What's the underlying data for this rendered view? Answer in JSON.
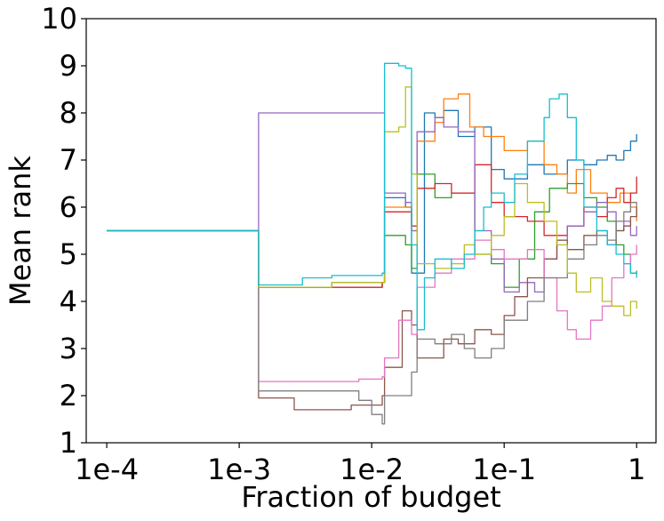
{
  "chart_data": {
    "type": "line",
    "title": "",
    "xlabel": "Fraction of budget",
    "ylabel": "Mean rank",
    "xscale": "log",
    "xlim": [
      7e-05,
      1.4
    ],
    "ylim": [
      1,
      10
    ],
    "xticks": [
      {
        "value": 0.0001,
        "label": "1e-4"
      },
      {
        "value": 0.001,
        "label": "1e-3"
      },
      {
        "value": 0.01,
        "label": "1e-2"
      },
      {
        "value": 0.1,
        "label": "1e-1"
      },
      {
        "value": 1,
        "label": "1"
      }
    ],
    "yticks": [
      1,
      2,
      3,
      4,
      5,
      6,
      7,
      8,
      9,
      10
    ],
    "grid": false,
    "legend": "none",
    "series": [
      {
        "color": "#1f77b4",
        "points": [
          [
            0.0001,
            5.5
          ],
          [
            0.00135,
            5.5
          ],
          [
            0.0014,
            4.3
          ],
          [
            0.005,
            4.4
          ],
          [
            0.012,
            4.4
          ],
          [
            0.0125,
            6.2
          ],
          [
            0.018,
            6.0
          ],
          [
            0.02,
            4.6
          ],
          [
            0.025,
            8.0
          ],
          [
            0.03,
            7.9
          ],
          [
            0.035,
            8.05
          ],
          [
            0.045,
            7.5
          ],
          [
            0.06,
            7.7
          ],
          [
            0.08,
            6.8
          ],
          [
            0.1,
            6.6
          ],
          [
            0.15,
            6.9
          ],
          [
            0.2,
            6.7
          ],
          [
            0.3,
            7.0
          ],
          [
            0.4,
            6.9
          ],
          [
            0.5,
            7.0
          ],
          [
            0.6,
            7.1
          ],
          [
            0.7,
            7.0
          ],
          [
            0.8,
            7.2
          ],
          [
            0.9,
            7.4
          ],
          [
            1.0,
            7.55
          ]
        ]
      },
      {
        "color": "#ff7f0e",
        "points": [
          [
            0.0001,
            5.5
          ],
          [
            0.00135,
            5.5
          ],
          [
            0.0014,
            4.3
          ],
          [
            0.012,
            4.4
          ],
          [
            0.0125,
            6.0
          ],
          [
            0.02,
            5.5
          ],
          [
            0.022,
            7.4
          ],
          [
            0.03,
            7.8
          ],
          [
            0.035,
            8.3
          ],
          [
            0.045,
            8.4
          ],
          [
            0.055,
            7.7
          ],
          [
            0.07,
            7.5
          ],
          [
            0.1,
            7.2
          ],
          [
            0.15,
            7.4
          ],
          [
            0.2,
            6.9
          ],
          [
            0.25,
            6.7
          ],
          [
            0.3,
            6.3
          ],
          [
            0.35,
            6.8
          ],
          [
            0.45,
            6.3
          ],
          [
            0.6,
            6.1
          ],
          [
            0.75,
            6.3
          ],
          [
            0.9,
            6.0
          ],
          [
            1.0,
            5.7
          ]
        ]
      },
      {
        "color": "#2ca02c",
        "points": [
          [
            0.0001,
            5.5
          ],
          [
            0.00135,
            5.5
          ],
          [
            0.0014,
            4.3
          ],
          [
            0.012,
            4.4
          ],
          [
            0.0125,
            5.4
          ],
          [
            0.018,
            5.2
          ],
          [
            0.02,
            4.7
          ],
          [
            0.022,
            6.7
          ],
          [
            0.03,
            6.2
          ],
          [
            0.04,
            6.3
          ],
          [
            0.06,
            5.0
          ],
          [
            0.08,
            4.8
          ],
          [
            0.1,
            4.3
          ],
          [
            0.13,
            4.9
          ],
          [
            0.17,
            5.9
          ],
          [
            0.22,
            6.4
          ],
          [
            0.3,
            6.5
          ],
          [
            0.4,
            6.2
          ],
          [
            0.5,
            6.0
          ],
          [
            0.6,
            5.7
          ],
          [
            0.7,
            5.2
          ],
          [
            0.8,
            5.0
          ],
          [
            0.9,
            4.6
          ],
          [
            1.0,
            4.65
          ]
        ]
      },
      {
        "color": "#d62728",
        "points": [
          [
            0.0001,
            5.5
          ],
          [
            0.00135,
            5.5
          ],
          [
            0.0014,
            4.3
          ],
          [
            0.012,
            4.4
          ],
          [
            0.0125,
            5.9
          ],
          [
            0.02,
            5.6
          ],
          [
            0.022,
            6.4
          ],
          [
            0.03,
            6.5
          ],
          [
            0.04,
            6.3
          ],
          [
            0.06,
            6.9
          ],
          [
            0.08,
            6.1
          ],
          [
            0.1,
            5.8
          ],
          [
            0.15,
            5.7
          ],
          [
            0.2,
            5.4
          ],
          [
            0.3,
            5.6
          ],
          [
            0.4,
            6.0
          ],
          [
            0.5,
            5.8
          ],
          [
            0.6,
            6.2
          ],
          [
            0.7,
            6.4
          ],
          [
            0.8,
            6.1
          ],
          [
            0.9,
            6.3
          ],
          [
            1.0,
            6.65
          ]
        ]
      },
      {
        "color": "#9467bd",
        "points": [
          [
            0.0001,
            5.5
          ],
          [
            0.00135,
            5.5
          ],
          [
            0.0014,
            8.0
          ],
          [
            0.012,
            8.0
          ],
          [
            0.0125,
            6.3
          ],
          [
            0.018,
            6.1
          ],
          [
            0.02,
            5.5
          ],
          [
            0.022,
            7.6
          ],
          [
            0.03,
            7.9
          ],
          [
            0.035,
            7.7
          ],
          [
            0.045,
            7.6
          ],
          [
            0.06,
            5.5
          ],
          [
            0.08,
            4.9
          ],
          [
            0.1,
            4.2
          ],
          [
            0.13,
            4.4
          ],
          [
            0.17,
            4.2
          ],
          [
            0.2,
            4.9
          ],
          [
            0.25,
            5.3
          ],
          [
            0.3,
            5.6
          ],
          [
            0.4,
            5.9
          ],
          [
            0.5,
            6.1
          ],
          [
            0.6,
            5.9
          ],
          [
            0.7,
            5.5
          ],
          [
            0.8,
            5.7
          ],
          [
            0.9,
            5.4
          ],
          [
            1.0,
            5.6
          ]
        ]
      },
      {
        "color": "#8c564b",
        "points": [
          [
            0.0001,
            5.5
          ],
          [
            0.00135,
            5.5
          ],
          [
            0.0014,
            1.95
          ],
          [
            0.0025,
            1.95
          ],
          [
            0.0026,
            1.7
          ],
          [
            0.005,
            1.7
          ],
          [
            0.007,
            1.8
          ],
          [
            0.012,
            2.0
          ],
          [
            0.0125,
            2.6
          ],
          [
            0.017,
            3.8
          ],
          [
            0.02,
            3.5
          ],
          [
            0.022,
            2.8
          ],
          [
            0.03,
            2.8
          ],
          [
            0.035,
            3.2
          ],
          [
            0.045,
            3.1
          ],
          [
            0.06,
            3.4
          ],
          [
            0.08,
            3.3
          ],
          [
            0.1,
            3.7
          ],
          [
            0.12,
            4.1
          ],
          [
            0.15,
            4.5
          ],
          [
            0.2,
            4.9
          ],
          [
            0.25,
            5.3
          ],
          [
            0.3,
            5.1
          ],
          [
            0.4,
            5.4
          ],
          [
            0.5,
            5.5
          ],
          [
            0.6,
            5.2
          ],
          [
            0.7,
            5.5
          ],
          [
            0.8,
            5.6
          ],
          [
            0.9,
            5.8
          ],
          [
            1.0,
            6.0
          ]
        ]
      },
      {
        "color": "#e377c2",
        "points": [
          [
            0.0001,
            5.5
          ],
          [
            0.00135,
            5.5
          ],
          [
            0.0014,
            2.3
          ],
          [
            0.0025,
            2.3
          ],
          [
            0.005,
            2.3
          ],
          [
            0.008,
            2.35
          ],
          [
            0.012,
            2.4
          ],
          [
            0.0125,
            2.8
          ],
          [
            0.016,
            3.6
          ],
          [
            0.02,
            3.3
          ],
          [
            0.022,
            4.3
          ],
          [
            0.03,
            4.6
          ],
          [
            0.04,
            4.9
          ],
          [
            0.06,
            5.3
          ],
          [
            0.08,
            5.1
          ],
          [
            0.1,
            4.9
          ],
          [
            0.15,
            5.1
          ],
          [
            0.2,
            4.5
          ],
          [
            0.25,
            3.8
          ],
          [
            0.3,
            3.4
          ],
          [
            0.35,
            3.2
          ],
          [
            0.45,
            3.6
          ],
          [
            0.55,
            3.9
          ],
          [
            0.65,
            4.5
          ],
          [
            0.8,
            4.8
          ],
          [
            0.9,
            5.0
          ],
          [
            1.0,
            5.2
          ]
        ]
      },
      {
        "color": "#7f7f7f",
        "points": [
          [
            0.0001,
            5.5
          ],
          [
            0.00135,
            5.5
          ],
          [
            0.0014,
            2.1
          ],
          [
            0.005,
            2.1
          ],
          [
            0.008,
            1.9
          ],
          [
            0.01,
            1.6
          ],
          [
            0.012,
            1.4
          ],
          [
            0.0125,
            2.0
          ],
          [
            0.02,
            2.5
          ],
          [
            0.022,
            3.2
          ],
          [
            0.03,
            3.1
          ],
          [
            0.04,
            3.3
          ],
          [
            0.05,
            3.0
          ],
          [
            0.06,
            2.8
          ],
          [
            0.08,
            3.0
          ],
          [
            0.1,
            3.6
          ],
          [
            0.15,
            4.0
          ],
          [
            0.2,
            4.5
          ],
          [
            0.3,
            4.9
          ],
          [
            0.4,
            5.2
          ],
          [
            0.5,
            5.4
          ],
          [
            0.6,
            5.3
          ],
          [
            0.7,
            5.7
          ],
          [
            0.8,
            5.9
          ],
          [
            0.9,
            6.1
          ],
          [
            1.0,
            6.0
          ]
        ]
      },
      {
        "color": "#bcbd22",
        "points": [
          [
            0.0001,
            5.5
          ],
          [
            0.00135,
            5.5
          ],
          [
            0.0014,
            4.3
          ],
          [
            0.005,
            4.4
          ],
          [
            0.012,
            4.4
          ],
          [
            0.0125,
            7.6
          ],
          [
            0.016,
            7.7
          ],
          [
            0.018,
            8.55
          ],
          [
            0.02,
            6.7
          ],
          [
            0.022,
            4.8
          ],
          [
            0.03,
            4.7
          ],
          [
            0.04,
            4.8
          ],
          [
            0.05,
            5.2
          ],
          [
            0.06,
            5.0
          ],
          [
            0.08,
            5.4
          ],
          [
            0.1,
            5.8
          ],
          [
            0.12,
            6.5
          ],
          [
            0.15,
            6.1
          ],
          [
            0.2,
            5.7
          ],
          [
            0.25,
            5.2
          ],
          [
            0.3,
            4.6
          ],
          [
            0.35,
            4.2
          ],
          [
            0.45,
            4.5
          ],
          [
            0.55,
            4.0
          ],
          [
            0.65,
            3.9
          ],
          [
            0.8,
            3.7
          ],
          [
            0.9,
            4.0
          ],
          [
            1.0,
            3.85
          ]
        ]
      },
      {
        "color": "#17becf",
        "points": [
          [
            0.0001,
            5.5
          ],
          [
            0.00135,
            5.5
          ],
          [
            0.0014,
            4.35
          ],
          [
            0.0025,
            4.35
          ],
          [
            0.003,
            4.5
          ],
          [
            0.005,
            4.55
          ],
          [
            0.012,
            4.6
          ],
          [
            0.0125,
            9.05
          ],
          [
            0.016,
            9.0
          ],
          [
            0.018,
            8.95
          ],
          [
            0.02,
            5.2
          ],
          [
            0.022,
            3.4
          ],
          [
            0.025,
            4.5
          ],
          [
            0.03,
            4.9
          ],
          [
            0.04,
            4.7
          ],
          [
            0.05,
            5.0
          ],
          [
            0.06,
            5.5
          ],
          [
            0.07,
            6.0
          ],
          [
            0.08,
            6.3
          ],
          [
            0.1,
            6.1
          ],
          [
            0.12,
            6.7
          ],
          [
            0.15,
            7.4
          ],
          [
            0.2,
            7.9
          ],
          [
            0.22,
            8.3
          ],
          [
            0.26,
            8.4
          ],
          [
            0.3,
            7.9
          ],
          [
            0.35,
            7.0
          ],
          [
            0.4,
            6.0
          ],
          [
            0.5,
            5.5
          ],
          [
            0.6,
            5.2
          ],
          [
            0.7,
            5.0
          ],
          [
            0.8,
            4.8
          ],
          [
            0.9,
            4.6
          ],
          [
            1.0,
            4.5
          ]
        ]
      }
    ]
  }
}
